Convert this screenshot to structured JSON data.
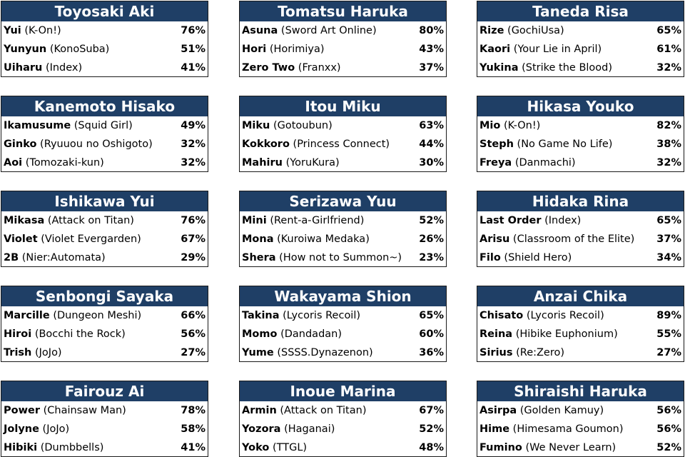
{
  "cards": [
    {
      "title": "Toyosaki Aki",
      "rows": [
        {
          "name": "Yui",
          "series": "(K-On!)",
          "pct": "76%"
        },
        {
          "name": "Yunyun",
          "series": "(KonoSuba)",
          "pct": "51%"
        },
        {
          "name": "Uiharu",
          "series": "(Index)",
          "pct": "41%"
        }
      ]
    },
    {
      "title": "Tomatsu Haruka",
      "rows": [
        {
          "name": "Asuna",
          "series": "(Sword Art Online)",
          "pct": "80%"
        },
        {
          "name": "Hori",
          "series": "(Horimiya)",
          "pct": "43%"
        },
        {
          "name": "Zero Two",
          "series": "(Franxx)",
          "pct": "37%"
        }
      ]
    },
    {
      "title": "Taneda Risa",
      "rows": [
        {
          "name": "Rize",
          "series": "(GochiUsa)",
          "pct": "65%"
        },
        {
          "name": "Kaori",
          "series": "(Your Lie in April)",
          "pct": "61%"
        },
        {
          "name": "Yukina",
          "series": "(Strike the Blood)",
          "pct": "32%"
        }
      ]
    },
    {
      "title": "Kanemoto Hisako",
      "rows": [
        {
          "name": "Ikamusume",
          "series": "(Squid Girl)",
          "pct": "49%"
        },
        {
          "name": "Ginko",
          "series": "(Ryuuou no Oshigoto)",
          "pct": "32%"
        },
        {
          "name": "Aoi",
          "series": "(Tomozaki-kun)",
          "pct": "32%"
        }
      ]
    },
    {
      "title": "Itou Miku",
      "rows": [
        {
          "name": "Miku",
          "series": "(Gotoubun)",
          "pct": "63%"
        },
        {
          "name": "Kokkoro",
          "series": "(Princess Connect)",
          "pct": "44%"
        },
        {
          "name": "Mahiru",
          "series": "(YoruKura)",
          "pct": "30%"
        }
      ]
    },
    {
      "title": "Hikasa Youko",
      "rows": [
        {
          "name": "Mio",
          "series": "(K-On!)",
          "pct": "82%"
        },
        {
          "name": "Steph",
          "series": "(No Game No Life)",
          "pct": "38%"
        },
        {
          "name": "Freya",
          "series": "(Danmachi)",
          "pct": "32%"
        }
      ]
    },
    {
      "title": "Ishikawa Yui",
      "rows": [
        {
          "name": "Mikasa",
          "series": "(Attack on Titan)",
          "pct": "76%"
        },
        {
          "name": "Violet",
          "series": "(Violet Evergarden)",
          "pct": "67%"
        },
        {
          "name": "2B",
          "series": "(Nier:Automata)",
          "pct": "29%"
        }
      ]
    },
    {
      "title": "Serizawa Yuu",
      "rows": [
        {
          "name": "Mini",
          "series": "(Rent-a-Girlfriend)",
          "pct": "52%"
        },
        {
          "name": "Mona",
          "series": "(Kuroiwa Medaka)",
          "pct": "26%"
        },
        {
          "name": "Shera",
          "series": "(How not to Summon~)",
          "pct": "23%"
        }
      ]
    },
    {
      "title": "Hidaka Rina",
      "rows": [
        {
          "name": "Last Order",
          "series": "(Index)",
          "pct": "65%"
        },
        {
          "name": "Arisu",
          "series": "(Classroom of the Elite)",
          "pct": "37%"
        },
        {
          "name": "Filo",
          "series": "(Shield Hero)",
          "pct": "34%"
        }
      ]
    },
    {
      "title": "Senbongi Sayaka",
      "rows": [
        {
          "name": "Marcille",
          "series": "(Dungeon Meshi)",
          "pct": "66%"
        },
        {
          "name": "Hiroi",
          "series": "(Bocchi the Rock)",
          "pct": "56%"
        },
        {
          "name": "Trish",
          "series": "(JoJo)",
          "pct": "27%"
        }
      ]
    },
    {
      "title": "Wakayama Shion",
      "rows": [
        {
          "name": "Takina",
          "series": "(Lycoris Recoil)",
          "pct": "65%"
        },
        {
          "name": "Momo",
          "series": "(Dandadan)",
          "pct": "60%"
        },
        {
          "name": "Yume",
          "series": "(SSSS.Dynazenon)",
          "pct": "36%"
        }
      ]
    },
    {
      "title": "Anzai Chika",
      "rows": [
        {
          "name": "Chisato",
          "series": "(Lycoris Recoil)",
          "pct": "89%"
        },
        {
          "name": "Reina",
          "series": "(Hibike Euphonium)",
          "pct": "55%"
        },
        {
          "name": "Sirius",
          "series": "(Re:Zero)",
          "pct": "27%"
        }
      ]
    },
    {
      "title": "Fairouz Ai",
      "rows": [
        {
          "name": "Power",
          "series": "(Chainsaw Man)",
          "pct": "78%"
        },
        {
          "name": "Jolyne",
          "series": "(JoJo)",
          "pct": "58%"
        },
        {
          "name": "Hibiki",
          "series": "(Dumbbells)",
          "pct": "41%"
        }
      ]
    },
    {
      "title": "Inoue Marina",
      "rows": [
        {
          "name": "Armin",
          "series": "(Attack on Titan)",
          "pct": "67%"
        },
        {
          "name": "Yozora",
          "series": "(Haganai)",
          "pct": "52%"
        },
        {
          "name": "Yoko",
          "series": "(TTGL)",
          "pct": "48%"
        }
      ]
    },
    {
      "title": "Shiraishi Haruka",
      "rows": [
        {
          "name": "Asirpa",
          "series": "(Golden Kamuy)",
          "pct": "56%"
        },
        {
          "name": "Hime",
          "series": "(Himesama Goumon)",
          "pct": "56%"
        },
        {
          "name": "Fumino",
          "series": "(We Never Learn)",
          "pct": "52%"
        }
      ]
    }
  ]
}
